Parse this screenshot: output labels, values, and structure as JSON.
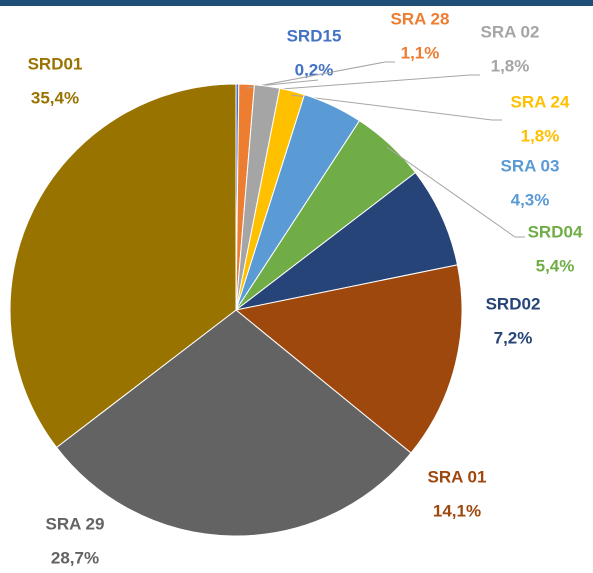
{
  "chart_data": {
    "type": "pie",
    "categories": [
      "SRD15",
      "SRA 28",
      "SRA 02",
      "SRA 24",
      "SRA 03",
      "SRD04",
      "SRD02",
      "SRA 01",
      "SRA 29",
      "SRD01"
    ],
    "values": [
      0.2,
      1.1,
      1.8,
      1.8,
      4.3,
      5.4,
      7.2,
      14.1,
      28.7,
      35.4
    ],
    "value_labels": [
      "0,2%",
      "1,1%",
      "1,8%",
      "1,8%",
      "4,3%",
      "5,4%",
      "7,2%",
      "14,1%",
      "28,7%",
      "35,4%"
    ],
    "colors": [
      "#4472c4",
      "#ed7d31",
      "#a5a5a5",
      "#ffc000",
      "#5b9bd5",
      "#70ad47",
      "#264478",
      "#9e480e",
      "#636363",
      "#997300"
    ]
  }
}
